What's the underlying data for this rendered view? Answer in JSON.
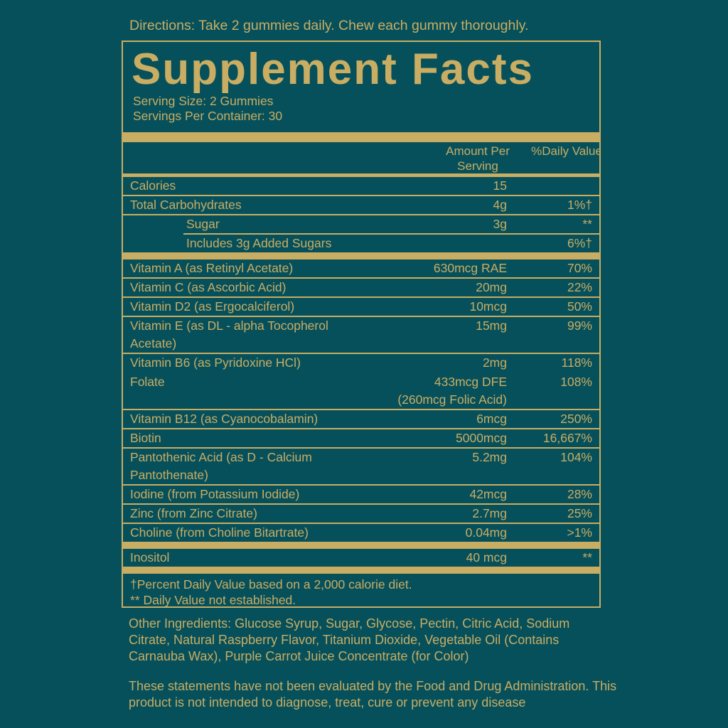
{
  "colors": {
    "background": "#06505C",
    "gold": "#C9AD62"
  },
  "directions": "Directions: Take 2 gummies daily. Chew each gummy thoroughly.",
  "panel": {
    "title": "Supplement Facts",
    "serving_size": "Serving Size: 2 Gummies",
    "servings_per_container": "Servings Per Container: 30",
    "column_headers": {
      "amount": "Amount Per\nServing",
      "daily_value": "%Daily\nValue"
    },
    "rows": [
      {
        "label": "Calories",
        "amount": "15",
        "dv": "",
        "indent": false,
        "divider": "thin"
      },
      {
        "label": "Total Carbohydrates",
        "amount": "4g",
        "dv": "1%†",
        "indent": false,
        "divider": "thin"
      },
      {
        "label": "Sugar",
        "amount": "3g",
        "dv": "**",
        "indent": true,
        "divider": "thin-indent"
      },
      {
        "label": "Includes 3g Added Sugars",
        "amount": "",
        "dv": "6%†",
        "indent": true,
        "divider": "bar"
      },
      {
        "label": "Vitamin A (as Retinyl Acetate)",
        "amount": "630mcg RAE",
        "dv": "70%",
        "indent": false,
        "divider": "thin"
      },
      {
        "label": "Vitamin C (as Ascorbic Acid)",
        "amount": "20mg",
        "dv": "22%",
        "indent": false,
        "divider": "thin"
      },
      {
        "label": "Vitamin D2 (as Ergocalciferol)",
        "amount": "10mcg",
        "dv": "50%",
        "indent": false,
        "divider": "thin"
      },
      {
        "label": "Vitamin E (as DL - alpha Tocopherol\nAcetate)",
        "amount": "15mg",
        "dv": "99%",
        "indent": false,
        "divider": "thin"
      },
      {
        "label": "Vitamin B6 (as Pyridoxine HCl)",
        "amount": "2mg",
        "dv": "118%",
        "indent": false,
        "divider": "none"
      },
      {
        "label": "Folate",
        "amount": "433mcg DFE\n(260mcg Folic Acid)",
        "dv": "108%",
        "indent": false,
        "divider": "thin"
      },
      {
        "label": "Vitamin B12 (as Cyanocobalamin)",
        "amount": "6mcg",
        "dv": "250%",
        "indent": false,
        "divider": "thin"
      },
      {
        "label": "Biotin",
        "amount": "5000mcg",
        "dv": "16,667%",
        "indent": false,
        "divider": "thin"
      },
      {
        "label": "Pantothenic Acid (as D - Calcium\nPantothenate)",
        "amount": "5.2mg",
        "dv": "104%",
        "indent": false,
        "divider": "thin"
      },
      {
        "label": "Iodine (from Potassium Iodide)",
        "amount": "42mcg",
        "dv": "28%",
        "indent": false,
        "divider": "thin"
      },
      {
        "label": "Zinc (from Zinc Citrate)",
        "amount": "2.7mg",
        "dv": "25%",
        "indent": false,
        "divider": "thin"
      },
      {
        "label": "Choline (from Choline Bitartrate)",
        "amount": "0.04mg",
        "dv": ">1%",
        "indent": false,
        "divider": "bar"
      },
      {
        "label": "Inositol",
        "amount": "40 mcg",
        "dv": "**",
        "indent": false,
        "divider": "bar"
      }
    ],
    "footnotes": [
      "†Percent Daily Value based on a 2,000 calorie diet.",
      "** Daily Value not established."
    ]
  },
  "other_ingredients": "Other Ingredients: Glucose Syrup, Sugar, Glycose, Pectin, Citric Acid, Sodium Citrate, Natural Raspberry Flavor, Titanium Dioxide, Vegetable Oil (Contains Carnauba Wax), Purple Carrot Juice Concentrate (for Color)",
  "disclaimer": "These statements have not been evaluated by the Food and Drug Administration. This product is not intended to diagnose, treat, cure or prevent any disease"
}
